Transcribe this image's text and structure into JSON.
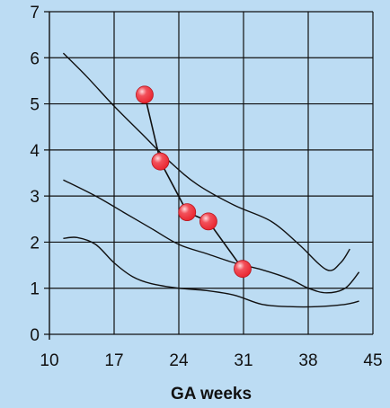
{
  "chart_data": {
    "type": "line",
    "title": "",
    "xlabel": "GA weeks",
    "ylabel": "",
    "xlim": [
      10,
      45
    ],
    "ylim": [
      0,
      7
    ],
    "x_ticks": [
      10,
      17,
      24,
      31,
      38,
      45
    ],
    "y_ticks": [
      0,
      1,
      2,
      3,
      4,
      5,
      6,
      7
    ],
    "grid": true,
    "colors": {
      "background": "#bcdcf3",
      "grid": "#111111",
      "line": "#111111",
      "marker": "#e8212b"
    },
    "reference_curves": [
      {
        "x": [
          11.5,
          14,
          17,
          20,
          23,
          26,
          30,
          34,
          37,
          40,
          41.5,
          42.5
        ],
        "y": [
          6.1,
          5.6,
          4.95,
          4.35,
          3.75,
          3.25,
          2.8,
          2.45,
          1.95,
          1.4,
          1.55,
          1.85
        ]
      },
      {
        "x": [
          11.5,
          15,
          18,
          21,
          24,
          27,
          30,
          33,
          36,
          38,
          40,
          42,
          43.5
        ],
        "y": [
          3.35,
          3.0,
          2.65,
          2.3,
          1.95,
          1.75,
          1.55,
          1.4,
          1.2,
          1.0,
          0.9,
          1.0,
          1.35
        ]
      },
      {
        "x": [
          11.5,
          13,
          15,
          17,
          19,
          21,
          24,
          27,
          30,
          33,
          36,
          39,
          42,
          43.5
        ],
        "y": [
          2.08,
          2.1,
          1.95,
          1.55,
          1.25,
          1.1,
          1.0,
          0.95,
          0.85,
          0.65,
          0.6,
          0.6,
          0.65,
          0.72
        ]
      }
    ],
    "series": [
      {
        "x": [
          20.3,
          22.0,
          24.9,
          27.2,
          30.9
        ],
        "y": [
          5.2,
          3.75,
          2.65,
          2.45,
          1.42
        ]
      }
    ]
  }
}
